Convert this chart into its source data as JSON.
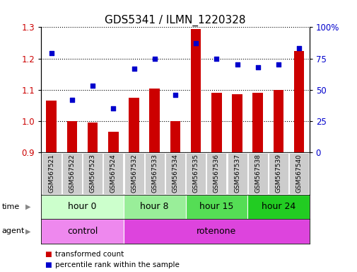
{
  "title": "GDS5341 / ILMN_1220328",
  "samples": [
    "GSM567521",
    "GSM567522",
    "GSM567523",
    "GSM567524",
    "GSM567532",
    "GSM567533",
    "GSM567534",
    "GSM567535",
    "GSM567536",
    "GSM567537",
    "GSM567538",
    "GSM567539",
    "GSM567540"
  ],
  "bar_values": [
    1.065,
    1.0,
    0.995,
    0.965,
    1.075,
    1.105,
    1.0,
    1.295,
    1.09,
    1.085,
    1.09,
    1.1,
    1.225
  ],
  "dot_values": [
    79,
    42,
    53,
    35,
    67,
    75,
    46,
    87,
    75,
    70,
    68,
    70,
    83
  ],
  "ylim_left": [
    0.9,
    1.3
  ],
  "ylim_right": [
    0,
    100
  ],
  "yticks_left": [
    0.9,
    1.0,
    1.1,
    1.2,
    1.3
  ],
  "yticks_right": [
    0,
    25,
    50,
    75,
    100
  ],
  "bar_color": "#cc0000",
  "dot_color": "#0000cc",
  "bar_baseline": 0.9,
  "time_groups": [
    {
      "label": "hour 0",
      "start": 0,
      "end": 4,
      "color": "#ccffcc"
    },
    {
      "label": "hour 8",
      "start": 4,
      "end": 7,
      "color": "#99ee99"
    },
    {
      "label": "hour 15",
      "start": 7,
      "end": 10,
      "color": "#55dd55"
    },
    {
      "label": "hour 24",
      "start": 10,
      "end": 13,
      "color": "#22cc22"
    }
  ],
  "agent_groups": [
    {
      "label": "control",
      "start": 0,
      "end": 4,
      "color": "#ee88ee"
    },
    {
      "label": "rotenone",
      "start": 4,
      "end": 13,
      "color": "#dd44dd"
    }
  ],
  "legend_items": [
    {
      "label": "transformed count",
      "color": "#cc0000"
    },
    {
      "label": "percentile rank within the sample",
      "color": "#0000cc"
    }
  ],
  "grid_color": "black",
  "background_color": "white",
  "tick_label_color_left": "#cc0000",
  "tick_label_color_right": "#0000cc",
  "title_fontsize": 11,
  "sample_label_fontsize": 6.5,
  "group_label_fontsize": 9
}
